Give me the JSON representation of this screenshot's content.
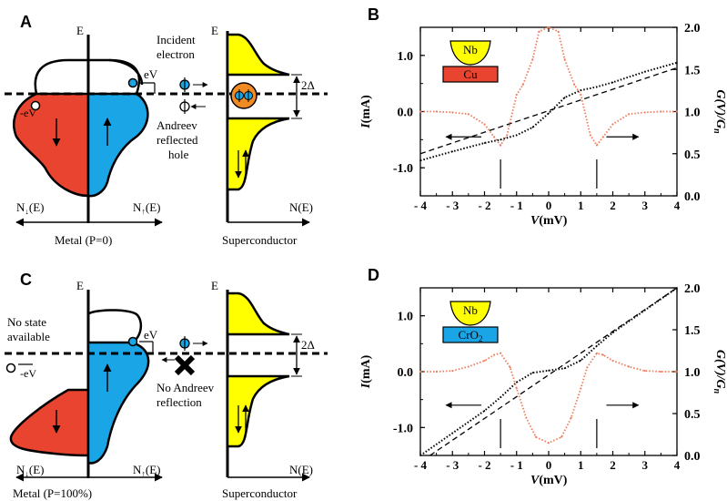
{
  "colors": {
    "red": "#e8442f",
    "blue": "#1aa5e6",
    "yellow": "#ffff00",
    "orange_curve": "#f07a5a",
    "black": "#000000"
  },
  "panels": {
    "A": {
      "letter": "A",
      "energy_axis": "E",
      "incident": [
        "Incident",
        "electron"
      ],
      "andreev": [
        "Andreev",
        "reflected",
        "hole"
      ],
      "ev": "eV",
      "neg_ev": "-eV",
      "gap": "2Δ",
      "left_axis": "N",
      "down_sub": "↓",
      "up_sub": "↑",
      "arg": "(E)",
      "sc_axis": "N(E)",
      "metal_caption": "Metal (P=0)",
      "sc_caption": "Superconductor"
    },
    "C": {
      "letter": "C",
      "energy_axis": "E",
      "no_state": [
        "No state",
        "available"
      ],
      "no_andreev": [
        "No Andreev",
        "reflection"
      ],
      "ev": "eV",
      "neg_ev": "-eV",
      "gap": "2Δ",
      "sc_axis": "N(E)",
      "metal_caption": "Metal (P=100%)",
      "sc_caption": "Superconductor"
    }
  },
  "chart_data": [
    {
      "panel": "B",
      "type": "line",
      "xlabel_var": "V",
      "xlabel_unit": "(mV)",
      "ylabel_var": "I",
      "ylabel_unit": "(mA)",
      "y2label": "G(V)/G",
      "y2label_sub": "n",
      "xlim": [
        -4,
        4
      ],
      "ylim": [
        -1.5,
        1.5
      ],
      "y2lim": [
        0.0,
        2.0
      ],
      "xticks": [
        "- 4",
        "- 3",
        "- 2",
        "- 1",
        "0",
        "1",
        "2",
        "3",
        "4"
      ],
      "yticks": [
        {
          "v": 1.0,
          "label": "1.0"
        },
        {
          "v": 0.0,
          "label": "0.0"
        },
        {
          "v": -1.0,
          "label": "-1.0"
        }
      ],
      "y2ticks": [
        "0.0",
        "0.5",
        "1.0",
        "1.5",
        "2.0"
      ],
      "inset_top": "Nb",
      "inset_bottom": "Cu",
      "inset_bottom_color": "#e8442f",
      "iv_curve": {
        "x": [
          -4,
          -3,
          -2,
          -1.5,
          -1,
          -0.5,
          0,
          0.5,
          1,
          1.5,
          2,
          3,
          4
        ],
        "y": [
          -0.87,
          -0.71,
          -0.56,
          -0.5,
          -0.42,
          -0.28,
          -0.03,
          0.25,
          0.38,
          0.44,
          0.52,
          0.71,
          0.87
        ]
      },
      "ohmic_line": {
        "x": [
          -4,
          4
        ],
        "y": [
          -0.75,
          0.78
        ]
      },
      "conductance": {
        "x": [
          -4,
          -3.5,
          -3,
          -2.5,
          -2,
          -1.7,
          -1.5,
          -1.3,
          -1,
          -0.8,
          -0.5,
          -0.3,
          0,
          0.3,
          0.5,
          0.8,
          1,
          1.3,
          1.5,
          1.7,
          2,
          2.5,
          3,
          3.5,
          4
        ],
        "y": [
          1.0,
          1.0,
          0.99,
          0.97,
          0.85,
          0.7,
          0.6,
          0.72,
          1.2,
          1.32,
          1.62,
          1.95,
          2.0,
          1.95,
          1.62,
          1.32,
          1.2,
          0.72,
          0.6,
          0.7,
          0.85,
          0.97,
          0.99,
          1.0,
          1.0
        ]
      },
      "arrow_markers_x": [
        -1.5,
        1.5
      ]
    },
    {
      "panel": "D",
      "type": "line",
      "xlabel_var": "V",
      "xlabel_unit": "(mV)",
      "ylabel_var": "I",
      "ylabel_unit": "(mA)",
      "y2label": "G(V)/G",
      "y2label_sub": "n",
      "xlim": [
        -4,
        4
      ],
      "ylim": [
        -1.5,
        1.5
      ],
      "y2lim": [
        0.0,
        2.0
      ],
      "xticks": [
        "- 4",
        "- 3",
        "- 2",
        "- 1",
        "0",
        "1",
        "2",
        "3",
        "4"
      ],
      "yticks": [
        {
          "v": 1.0,
          "label": "1.0"
        },
        {
          "v": 0.0,
          "label": "0.0"
        },
        {
          "v": -1.0,
          "label": "-1.0"
        }
      ],
      "y2ticks": [
        "0.0",
        "0.5",
        "1.0",
        "1.5",
        "2.0"
      ],
      "inset_top": "Nb",
      "inset_bottom": "CrO",
      "inset_bottom_sub": "2",
      "inset_bottom_color": "#1aa5e6",
      "iv_curve": {
        "x": [
          -4,
          -3,
          -2,
          -1.5,
          -1,
          -0.5,
          0,
          0.5,
          1,
          1.5,
          2,
          3,
          4
        ],
        "y": [
          -1.5,
          -1.1,
          -0.7,
          -0.46,
          -0.19,
          -0.02,
          0.02,
          0.06,
          0.2,
          0.46,
          0.7,
          1.1,
          1.5
        ]
      },
      "ohmic_line": {
        "x": [
          -3.7,
          4
        ],
        "y": [
          -1.5,
          1.5
        ]
      },
      "conductance": {
        "x": [
          -4,
          -3.5,
          -3,
          -2.5,
          -2,
          -1.7,
          -1.5,
          -1.2,
          -1,
          -0.7,
          -0.4,
          0,
          0.4,
          0.7,
          1,
          1.2,
          1.5,
          1.7,
          2,
          2.5,
          3,
          3.5,
          4
        ],
        "y": [
          1.0,
          1.0,
          1.01,
          1.06,
          1.13,
          1.2,
          1.22,
          1.05,
          0.8,
          0.45,
          0.22,
          0.15,
          0.22,
          0.45,
          0.8,
          1.05,
          1.22,
          1.2,
          1.13,
          1.06,
          1.01,
          1.0,
          1.0
        ]
      },
      "arrow_markers_x": [
        -1.5,
        1.5
      ]
    }
  ]
}
